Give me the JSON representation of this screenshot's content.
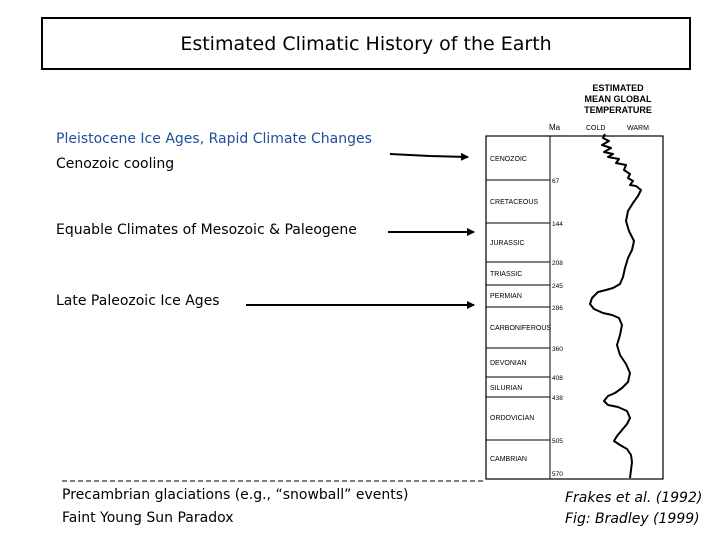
{
  "title": "Estimated Climatic History of the Earth",
  "annotations": {
    "pleistocene": "Pleistocene Ice Ages, Rapid Climate Changes",
    "cenozoic": "Cenozoic cooling",
    "equable": "Equable Climates of Mesozoic & Paleogene",
    "late_paleozoic": "Late Paleozoic Ice Ages",
    "precambrian": "Precambrian glaciations (e.g., “snowball” events)",
    "faint_sun": "Faint Young Sun Paradox"
  },
  "citations": {
    "frakes": "Frakes et al. (1992)",
    "bradley": "Fig: Bradley (1999)"
  },
  "figure": {
    "header": [
      "ESTIMATED",
      "MEAN GLOBAL",
      "TEMPERATURE"
    ],
    "ma_label": "Ma",
    "cold_label": "COLD",
    "warm_label": "WARM",
    "periods": [
      "CENOZOIC",
      "CRETACEOUS",
      "JURASSIC",
      "TRIASSIC",
      "PERMIAN",
      "CARBONIFEROUS",
      "DEVONIAN",
      "SILURIAN",
      "ORDOVICIAN",
      "CAMBRIAN"
    ],
    "ages": [
      "67",
      "144",
      "208",
      "245",
      "286",
      "360",
      "408",
      "438",
      "505",
      "570"
    ]
  },
  "colors": {
    "blue_text": "#1f4e9a",
    "arrow": "#000000"
  }
}
